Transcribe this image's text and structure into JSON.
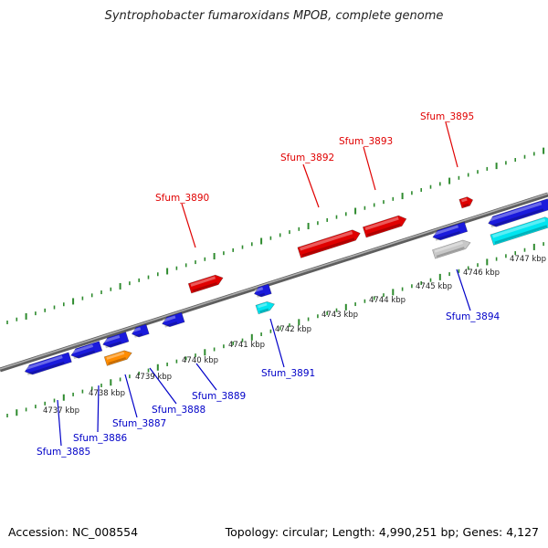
{
  "title": "Syntrophobacter fumaroxidans MPOB, complete genome",
  "footer": {
    "accession": "Accession: NC_008554",
    "summary": "Topology: circular; Length: 4,990,251 bp; Genes: 4,127"
  },
  "colors": {
    "backbone": "#8a8a8a",
    "ticks": "#2e8b2e",
    "forward_gene": "#e00000",
    "reverse_gene": "#1a1adc",
    "cyan_gene": "#00e5f0",
    "orange_gene": "#ff8c00",
    "gray_gene": "#c8c8c8",
    "forward_label": "#e00000",
    "reverse_label": "#0000c8"
  },
  "scale_labels": [
    "4737 kbp",
    "4738 kbp",
    "4739 kbp",
    "4740 kbp",
    "4741 kbp",
    "4742 kbp",
    "4743 kbp",
    "4744 kbp",
    "4745 kbp",
    "4746 kbp",
    "4747 kbp"
  ],
  "forward_genes": [
    "Sfum_3890",
    "Sfum_3892",
    "Sfum_3893",
    "Sfum_3895"
  ],
  "reverse_genes": [
    "Sfum_3885",
    "Sfum_3886",
    "Sfum_3887",
    "Sfum_3888",
    "Sfum_3889",
    "Sfum_3891",
    "Sfum_3894"
  ]
}
